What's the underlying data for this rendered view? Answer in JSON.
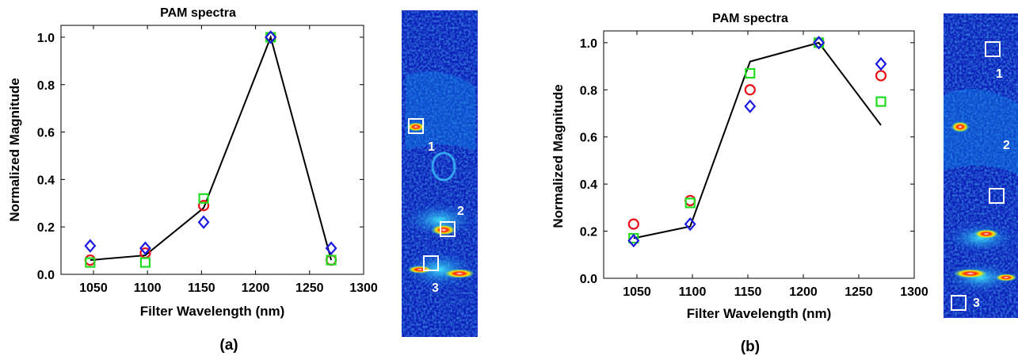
{
  "chart_data": [
    {
      "type": "line",
      "title": "PAM spectra",
      "xlabel": "Filter Wavelength (nm)",
      "ylabel": "Normalized Magnitude",
      "panel_label": "(a)",
      "xlim": [
        1020,
        1300
      ],
      "ylim": [
        0,
        1.05
      ],
      "xticks": [
        "1050",
        "1100",
        "1150",
        "1200",
        "1250",
        "1300"
      ],
      "yticks": [
        "0.0",
        "0.2",
        "0.4",
        "0.6",
        "0.8",
        "1.0"
      ],
      "line": {
        "color": "#000000",
        "x": [
          1047,
          1098,
          1152,
          1214,
          1270
        ],
        "y": [
          0.06,
          0.08,
          0.28,
          1.0,
          0.06
        ]
      },
      "markers": [
        {
          "shape": "circle",
          "color": "#e8101a",
          "x": [
            1047,
            1098,
            1152,
            1214,
            1270
          ],
          "y": [
            0.06,
            0.09,
            0.29,
            1.0,
            0.06
          ]
        },
        {
          "shape": "square",
          "color": "#22dd22",
          "x": [
            1047,
            1098,
            1152,
            1214,
            1270
          ],
          "y": [
            0.05,
            0.05,
            0.32,
            1.0,
            0.06
          ]
        },
        {
          "shape": "diamond",
          "color": "#1a1ae0",
          "x": [
            1047,
            1098,
            1152,
            1214,
            1270
          ],
          "y": [
            0.12,
            0.11,
            0.22,
            1.0,
            0.11
          ]
        }
      ]
    },
    {
      "type": "line",
      "title": "PAM spectra",
      "xlabel": "Filter Wavelength (nm)",
      "ylabel": "Normalized Magnitude",
      "panel_label": "(b)",
      "xlim": [
        1020,
        1300
      ],
      "ylim": [
        0,
        1.05
      ],
      "xticks": [
        "1050",
        "1100",
        "1150",
        "1200",
        "1250",
        "1300"
      ],
      "yticks": [
        "0.0",
        "0.2",
        "0.4",
        "0.6",
        "0.8",
        "1.0"
      ],
      "line": {
        "color": "#000000",
        "x": [
          1047,
          1098,
          1152,
          1214,
          1270
        ],
        "y": [
          0.17,
          0.22,
          0.92,
          1.0,
          0.65
        ]
      },
      "markers": [
        {
          "shape": "circle",
          "color": "#e8101a",
          "x": [
            1047,
            1098,
            1152,
            1214,
            1270
          ],
          "y": [
            0.23,
            0.33,
            0.8,
            1.0,
            0.86
          ]
        },
        {
          "shape": "square",
          "color": "#22dd22",
          "x": [
            1047,
            1098,
            1152,
            1214,
            1270
          ],
          "y": [
            0.17,
            0.32,
            0.87,
            1.0,
            0.75
          ]
        },
        {
          "shape": "diamond",
          "color": "#1a1ae0",
          "x": [
            1047,
            1098,
            1152,
            1214,
            1270
          ],
          "y": [
            0.16,
            0.23,
            0.73,
            1.0,
            0.91
          ]
        }
      ]
    }
  ],
  "images": [
    {
      "name": "pam-image-a",
      "roi_labels": [
        "1",
        "2",
        "3"
      ]
    },
    {
      "name": "pam-image-b",
      "roi_labels": [
        "1",
        "2",
        "3"
      ]
    }
  ]
}
